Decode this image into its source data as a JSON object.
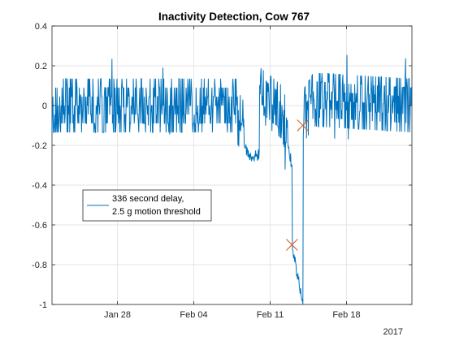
{
  "chart_data": {
    "type": "line",
    "title": "Inactivity Detection, Cow 767",
    "xlabel": "",
    "ylabel": "",
    "x_unit": "date",
    "x_range": [
      "2017-01-22",
      "2017-02-24"
    ],
    "ylim": [
      -1,
      0.4
    ],
    "y_ticks": [
      0.4,
      0.2,
      0,
      -0.2,
      -0.4,
      -0.6,
      -0.8,
      -1
    ],
    "x_ticks": [
      {
        "date": "2017-01-28",
        "label": "Jan 28"
      },
      {
        "date": "2017-02-04",
        "label": "Feb 04"
      },
      {
        "date": "2017-02-11",
        "label": "Feb 11"
      },
      {
        "date": "2017-02-18",
        "label": "Feb 18"
      }
    ],
    "year_label": "2017",
    "grid": true,
    "legend": {
      "location": "middle-left",
      "entries": [
        "336 second delay,",
        "2.5 g motion threshold"
      ]
    },
    "colors": {
      "line": "#0072BD",
      "marker": "#D95319",
      "grid": "#e6e6e6",
      "axis": "#262626"
    },
    "series": [
      {
        "name": "336 second delay, 2.5 g motion threshold",
        "anchors": [
          [
            "2017-01-22",
            0.0
          ],
          [
            "2017-02-08",
            0.0
          ],
          [
            "2017-02-08",
            -0.1
          ],
          [
            "2017-02-09",
            -0.25
          ],
          [
            "2017-02-10",
            -0.25
          ],
          [
            "2017-02-10",
            0.1
          ],
          [
            "2017-02-12",
            -0.05
          ],
          [
            "2017-02-13",
            -0.3
          ],
          [
            "2017-02-13",
            -0.7
          ],
          [
            "2017-02-14",
            -1.0
          ],
          [
            "2017-02-14",
            -0.1
          ],
          [
            "2017-02-15",
            0.05
          ],
          [
            "2017-02-24",
            0.0
          ]
        ]
      }
    ],
    "markers": [
      {
        "date": "2017-02-13",
        "value": -0.7,
        "symbol": "x"
      },
      {
        "date": "2017-02-14",
        "value": -0.1,
        "symbol": "x"
      }
    ]
  }
}
